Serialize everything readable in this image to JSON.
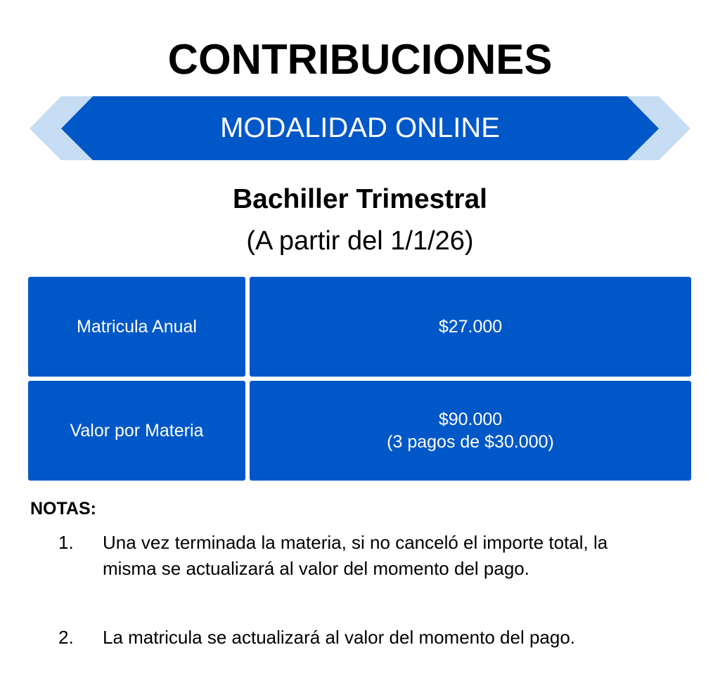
{
  "title": "CONTRIBUCIONES",
  "banner": {
    "label": "MODALIDAD ONLINE",
    "colors": {
      "primary": "#0057c8",
      "light": "#c6ddf3"
    }
  },
  "subtitle": "Bachiller Trimestral",
  "date_note": "(A partir del 1/1/26)",
  "table": {
    "rows": [
      {
        "label": "Matricula Anual",
        "value": "$27.000",
        "detail": ""
      },
      {
        "label": "Valor por Materia",
        "value": "$90.000",
        "detail": "(3 pagos de $30.000)"
      }
    ]
  },
  "notes": {
    "heading": "NOTAS:",
    "items": [
      {
        "num": "1.",
        "text": "Una vez terminada la materia, si no canceló el importe total, la misma se actualizará al valor del momento del pago."
      },
      {
        "num": "2.",
        "text": "La matricula se actualizará al valor del momento del pago."
      }
    ]
  }
}
